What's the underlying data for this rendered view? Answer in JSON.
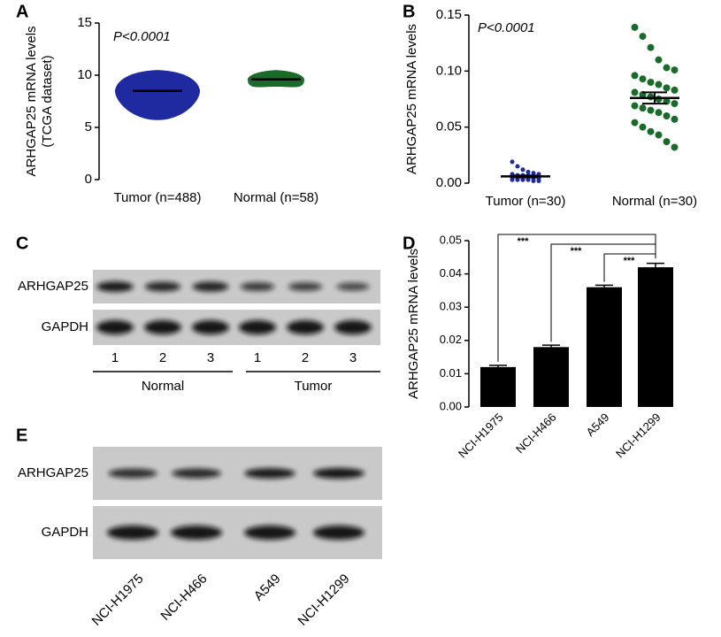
{
  "chart_data": [
    {
      "type": "dotplot",
      "panel": "A",
      "y_label": [
        "ARHGAP25 mRNA levels",
        "(TCGA dataset)"
      ],
      "annotation": "P<0.0001",
      "categories": [
        "Tumor (n=488)",
        "Normal (n=58)"
      ],
      "groups": [
        {
          "color": "#1f2aa0",
          "mean": 8.5,
          "min": 5.7,
          "max": 10.5
        },
        {
          "color": "#1a6b2a",
          "mean": 9.6,
          "min": 8.9,
          "max": 10.5
        }
      ],
      "ylim": [
        0,
        15
      ],
      "yticks": [
        0,
        5,
        10,
        15
      ]
    },
    {
      "type": "dotplot",
      "panel": "B",
      "y_label": [
        "ARHGAP25 mRNA levels"
      ],
      "annotation": "P<0.0001",
      "categories": [
        "Tumor (n=30)",
        "Normal (n=30)"
      ],
      "groups": [
        {
          "color": "#1f2aa0",
          "mean": 0.006,
          "sem": 0.0008,
          "values": [
            0.019,
            0.015,
            0.012,
            0.01,
            0.009,
            0.008,
            0.008,
            0.007,
            0.007,
            0.007,
            0.006,
            0.006,
            0.006,
            0.006,
            0.005,
            0.005,
            0.005,
            0.005,
            0.005,
            0.004,
            0.004,
            0.004,
            0.004,
            0.004,
            0.003,
            0.003,
            0.003,
            0.003,
            0.002,
            0.002
          ]
        },
        {
          "color": "#1a6b2a",
          "mean": 0.076,
          "sem": 0.005,
          "values": [
            0.139,
            0.131,
            0.121,
            0.11,
            0.103,
            0.101,
            0.096,
            0.093,
            0.09,
            0.088,
            0.085,
            0.083,
            0.081,
            0.079,
            0.077,
            0.075,
            0.073,
            0.071,
            0.069,
            0.067,
            0.065,
            0.063,
            0.06,
            0.057,
            0.054,
            0.05,
            0.046,
            0.043,
            0.037,
            0.032
          ]
        }
      ],
      "ylim": [
        0,
        0.15
      ],
      "yticks": [
        {
          "value": 0,
          "label": "0.00"
        },
        {
          "value": 0.05,
          "label": "0.05"
        },
        {
          "value": 0.1,
          "label": "0.10"
        },
        {
          "value": 0.15,
          "label": "0.15"
        }
      ]
    },
    {
      "type": "bar",
      "panel": "D",
      "y_label": [
        "ARHGAP25 mRNA levels"
      ],
      "categories": [
        "NCI-H1975",
        "NCI-H466",
        "A549",
        "NCI-H1299"
      ],
      "values": [
        0.012,
        0.018,
        0.036,
        0.042
      ],
      "errors": [
        0.0005,
        0.0006,
        0.0006,
        0.0012
      ],
      "color": "#000000",
      "significance_labels": [
        "***",
        "***",
        "***"
      ],
      "ylim": [
        0,
        0.05
      ],
      "yticks": [
        {
          "value": 0,
          "label": "0.00"
        },
        {
          "value": 0.01,
          "label": "0.01"
        },
        {
          "value": 0.02,
          "label": "0.02"
        },
        {
          "value": 0.03,
          "label": "0.03"
        },
        {
          "value": 0.04,
          "label": "0.04"
        },
        {
          "value": 0.05,
          "label": "0.05"
        }
      ]
    }
  ],
  "blots": [
    {
      "panel": "C",
      "rows": [
        "ARHGAP25",
        "GAPDH"
      ],
      "lanes": [
        "1",
        "2",
        "3",
        "1",
        "2",
        "3"
      ],
      "groups": [
        "Normal",
        "Tumor"
      ]
    },
    {
      "panel": "E",
      "rows": [
        "ARHGAP25",
        "GAPDH"
      ],
      "lanes": [
        "NCI-H1975",
        "NCI-H466",
        "A549",
        "NCI-H1299"
      ]
    }
  ]
}
